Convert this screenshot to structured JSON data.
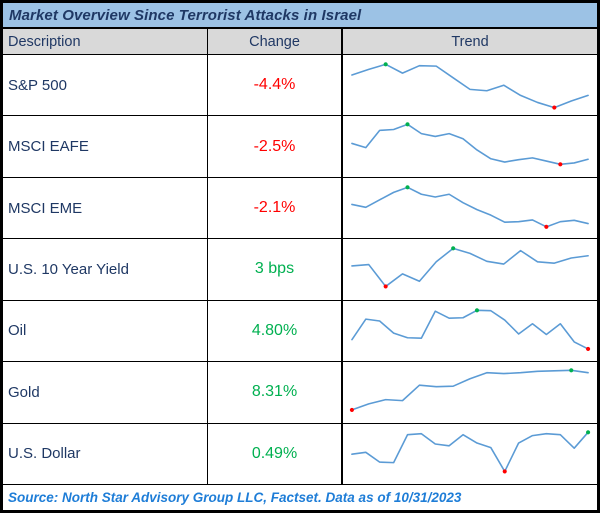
{
  "title": "Market Overview Since Terrorist Attacks in Israel",
  "header": {
    "description": "Description",
    "change": "Change",
    "trend": "Trend"
  },
  "footer": "Source: North Star Advisory Group LLC, Factset. Data as of 10/31/2023",
  "colors": {
    "title_bg": "#9CC2E5",
    "header_bg": "#D9D9D9",
    "navy_text": "#1F3864",
    "sparkline_blue": "#5B9BD5",
    "positive_green": "#00B050",
    "negative_red": "#FF0000",
    "footer_blue": "#1E7DD7"
  },
  "chart_data": {
    "type": "table",
    "title": "Market Overview Since Terrorist Attacks in Israel",
    "columns": [
      "Description",
      "Change",
      "Trend"
    ],
    "note": "Trend sparklines have no visible axes; values are normalized 0-1 from pixel positions. Green marker = period high, red marker = period low.",
    "rows": [
      {
        "description": "S&P 500",
        "change": "-4.4%",
        "direction": "negative",
        "sparkline": {
          "type": "line",
          "values_normalized": [
            0.72,
            0.84,
            0.95,
            0.76,
            0.92,
            0.91,
            0.66,
            0.41,
            0.38,
            0.5,
            0.28,
            0.13,
            0.02,
            0.16,
            0.28
          ],
          "high_index": 2,
          "low_index": 12
        }
      },
      {
        "description": "MSCI EAFE",
        "change": "-2.5%",
        "direction": "negative",
        "sparkline": {
          "type": "line",
          "values_normalized": [
            0.56,
            0.47,
            0.84,
            0.86,
            0.97,
            0.77,
            0.71,
            0.77,
            0.66,
            0.42,
            0.23,
            0.16,
            0.21,
            0.25,
            0.18,
            0.11,
            0.14,
            0.22
          ],
          "high_index": 4,
          "low_index": 15
        }
      },
      {
        "description": "MSCI EME",
        "change": "-2.1%",
        "direction": "negative",
        "sparkline": {
          "type": "line",
          "values_normalized": [
            0.58,
            0.52,
            0.68,
            0.84,
            0.95,
            0.8,
            0.74,
            0.8,
            0.62,
            0.47,
            0.35,
            0.2,
            0.21,
            0.25,
            0.1,
            0.21,
            0.24,
            0.17
          ],
          "high_index": 4,
          "low_index": 14
        }
      },
      {
        "description": "U.S. 10 Year Yield",
        "change": "3 bps",
        "direction": "positive",
        "sparkline": {
          "type": "line",
          "values_normalized": [
            0.57,
            0.6,
            0.13,
            0.4,
            0.24,
            0.66,
            0.95,
            0.84,
            0.67,
            0.61,
            0.9,
            0.66,
            0.63,
            0.74,
            0.79
          ],
          "high_index": 6,
          "low_index": 2
        }
      },
      {
        "description": "Oil",
        "change": "4.80%",
        "direction": "positive",
        "sparkline": {
          "type": "line",
          "values_normalized": [
            0.32,
            0.76,
            0.72,
            0.46,
            0.36,
            0.35,
            0.93,
            0.78,
            0.79,
            0.95,
            0.94,
            0.74,
            0.44,
            0.66,
            0.43,
            0.66,
            0.27,
            0.12
          ],
          "high_index": 9,
          "low_index": 17
        }
      },
      {
        "description": "Gold",
        "change": "8.31%",
        "direction": "positive",
        "sparkline": {
          "type": "line",
          "values_normalized": [
            0.12,
            0.25,
            0.34,
            0.32,
            0.65,
            0.62,
            0.63,
            0.79,
            0.92,
            0.9,
            0.92,
            0.95,
            0.96,
            0.97,
            0.92
          ],
          "high_index": 13,
          "low_index": 0
        }
      },
      {
        "description": "U.S. Dollar",
        "change": "0.49%",
        "direction": "positive",
        "sparkline": {
          "type": "line",
          "values_normalized": [
            0.5,
            0.54,
            0.33,
            0.32,
            0.92,
            0.94,
            0.72,
            0.68,
            0.92,
            0.74,
            0.64,
            0.13,
            0.74,
            0.9,
            0.94,
            0.92,
            0.63,
            0.97
          ],
          "high_index": 17,
          "low_index": 11
        }
      }
    ]
  }
}
